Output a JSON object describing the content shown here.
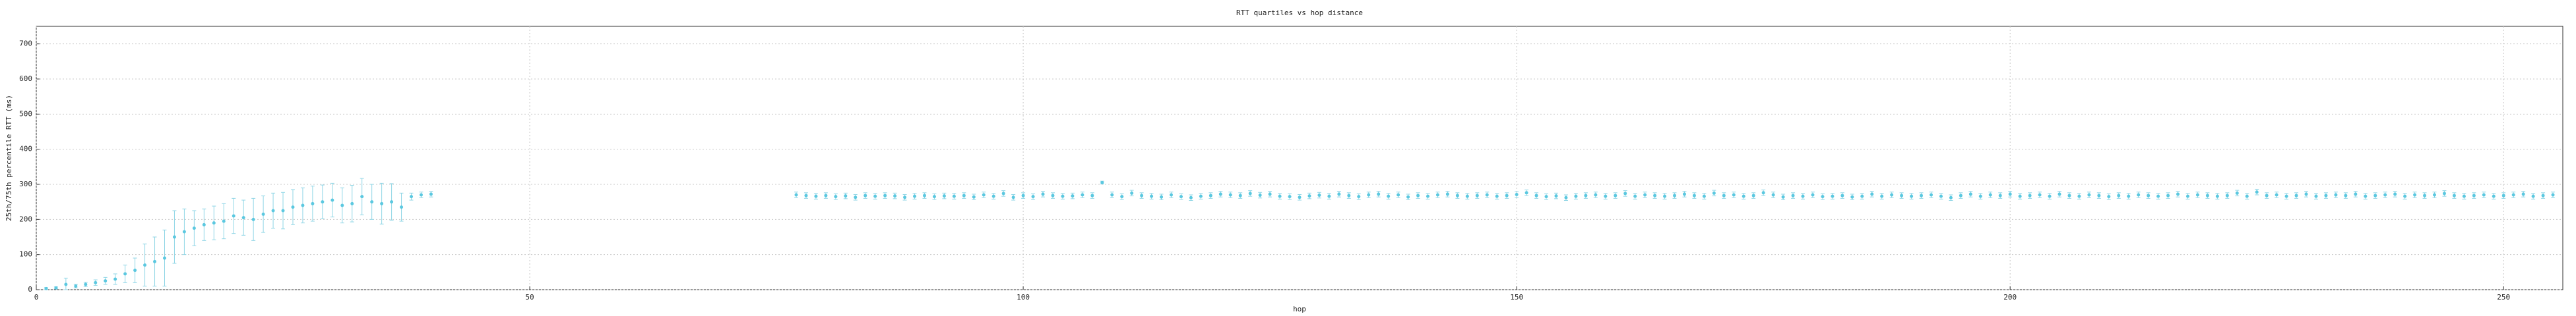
{
  "chart_data": {
    "type": "errorbar",
    "title": "RTT quartiles vs hop distance",
    "xlabel": "hop",
    "ylabel": "25th/75th percentile RTT (ms)",
    "xlim": [
      0,
      256
    ],
    "ylim": [
      0,
      750
    ],
    "xticks": [
      0,
      50,
      100,
      150,
      200,
      250
    ],
    "yticks": [
      0,
      100,
      200,
      300,
      400,
      500,
      600,
      700
    ],
    "grid": true,
    "color": "#5bc8e0",
    "errcolor": "#8fd6e6",
    "x": [
      1,
      2,
      3,
      4,
      5,
      6,
      7,
      8,
      9,
      10,
      11,
      12,
      13,
      14,
      15,
      16,
      17,
      18,
      19,
      20,
      21,
      22,
      23,
      24,
      25,
      26,
      27,
      28,
      29,
      30,
      31,
      32,
      33,
      34,
      35,
      36,
      37,
      38,
      39,
      40,
      77,
      78,
      79,
      80,
      81,
      82,
      83,
      84,
      85,
      86,
      87,
      88,
      89,
      90,
      91,
      92,
      93,
      94,
      95,
      96,
      97,
      98,
      99,
      100,
      101,
      102,
      103,
      104,
      105,
      106,
      107,
      108,
      109,
      110,
      111,
      112,
      113,
      114,
      115,
      116,
      117,
      118,
      119,
      120,
      121,
      122,
      123,
      124,
      125,
      126,
      127,
      128,
      129,
      130,
      131,
      132,
      133,
      134,
      135,
      136,
      137,
      138,
      139,
      140,
      141,
      142,
      143,
      144,
      145,
      146,
      147,
      148,
      149,
      150,
      151,
      152,
      153,
      154,
      155,
      156,
      157,
      158,
      159,
      160,
      161,
      162,
      163,
      164,
      165,
      166,
      167,
      168,
      169,
      170,
      171,
      172,
      173,
      174,
      175,
      176,
      177,
      178,
      179,
      180,
      181,
      182,
      183,
      184,
      185,
      186,
      187,
      188,
      189,
      190,
      191,
      192,
      193,
      194,
      195,
      196,
      197,
      198,
      199,
      200,
      201,
      202,
      203,
      204,
      205,
      206,
      207,
      208,
      209,
      210,
      211,
      212,
      213,
      214,
      215,
      216,
      217,
      218,
      219,
      220,
      221,
      222,
      223,
      224,
      225,
      226,
      227,
      228,
      229,
      230,
      231,
      232,
      233,
      234,
      235,
      236,
      237,
      238,
      239,
      240,
      241,
      242,
      243,
      244,
      245,
      246,
      247,
      248,
      249,
      250,
      251,
      252,
      253,
      254,
      255
    ],
    "values": [
      3,
      5,
      15,
      10,
      15,
      20,
      25,
      30,
      45,
      55,
      70,
      80,
      90,
      150,
      165,
      175,
      185,
      190,
      195,
      210,
      205,
      200,
      215,
      225,
      225,
      235,
      240,
      245,
      250,
      255,
      240,
      245,
      265,
      250,
      245,
      250,
      235,
      265,
      270,
      272,
      270,
      268,
      266,
      268,
      265,
      267,
      263,
      268,
      266,
      268,
      267,
      263,
      266,
      268,
      265,
      267,
      266,
      268,
      264,
      270,
      266,
      274,
      263,
      268,
      265,
      272,
      268,
      266,
      267,
      270,
      268,
      305,
      270,
      265,
      275,
      268,
      266,
      264,
      270,
      265,
      262,
      266,
      268,
      272,
      270,
      268,
      274,
      269,
      272,
      266,
      265,
      263,
      267,
      269,
      266,
      272,
      268,
      265,
      270,
      272,
      266,
      270,
      264,
      268,
      266,
      270,
      272,
      268,
      266,
      268,
      270,
      266,
      268,
      271,
      276,
      268,
      265,
      267,
      262,
      266,
      268,
      270,
      266,
      268,
      274,
      266,
      270,
      268,
      266,
      268,
      272,
      268,
      266,
      275,
      268,
      270,
      266,
      268,
      276,
      270,
      264,
      268,
      266,
      270,
      265,
      266,
      268,
      264,
      266,
      272,
      266,
      270,
      268,
      266,
      268,
      270,
      266,
      262,
      268,
      272,
      266,
      270,
      268,
      272,
      266,
      268,
      270,
      266,
      272,
      268,
      266,
      270,
      268,
      265,
      268,
      266,
      270,
      268,
      266,
      268,
      272,
      266,
      270,
      268,
      266,
      268,
      275,
      266,
      278,
      268,
      270,
      266,
      268,
      272,
      266,
      268,
      270,
      268,
      272,
      266,
      268,
      270,
      272,
      266,
      270,
      268,
      270,
      274,
      268,
      266,
      268,
      270,
      266,
      268,
      270,
      272,
      266,
      268,
      270
    ],
    "errors": [
      3,
      3,
      18,
      5,
      6,
      8,
      10,
      15,
      25,
      35,
      60,
      70,
      80,
      75,
      65,
      50,
      45,
      48,
      50,
      50,
      50,
      60,
      52,
      50,
      52,
      50,
      50,
      50,
      48,
      48,
      50,
      52,
      52,
      50,
      58,
      52,
      40,
      10,
      8,
      8,
      8,
      8,
      8,
      8,
      8,
      8,
      8,
      8,
      8,
      8,
      8,
      8,
      8,
      8,
      8,
      8,
      8,
      8,
      8,
      8,
      8,
      8,
      8,
      8,
      8,
      8,
      8,
      8,
      8,
      8,
      8,
      4,
      8,
      8,
      8,
      8,
      8,
      8,
      8,
      8,
      8,
      8,
      8,
      8,
      8,
      8,
      8,
      8,
      8,
      8,
      8,
      8,
      8,
      8,
      8,
      8,
      8,
      8,
      8,
      8,
      8,
      8,
      8,
      8,
      8,
      8,
      8,
      8,
      8,
      8,
      8,
      8,
      8,
      8,
      8,
      8,
      8,
      8,
      8,
      8,
      8,
      8,
      8,
      8,
      8,
      8,
      8,
      8,
      8,
      8,
      8,
      8,
      8,
      8,
      8,
      8,
      8,
      8,
      8,
      8,
      8,
      8,
      8,
      8,
      8,
      8,
      8,
      8,
      8,
      8,
      8,
      8,
      8,
      8,
      8,
      8,
      8,
      8,
      8,
      8,
      8,
      8,
      8,
      8,
      8,
      8,
      8,
      8,
      8,
      8,
      8,
      8,
      8,
      8,
      8,
      8,
      8,
      8,
      8,
      8,
      8,
      8,
      8,
      8,
      8,
      8,
      8,
      8,
      8,
      8,
      8,
      8,
      8,
      8,
      8,
      8,
      8,
      8,
      8,
      8,
      8,
      8,
      8,
      8,
      8,
      8,
      8,
      8,
      8,
      8,
      8,
      8,
      8,
      8,
      8,
      8,
      8,
      8,
      8
    ]
  }
}
